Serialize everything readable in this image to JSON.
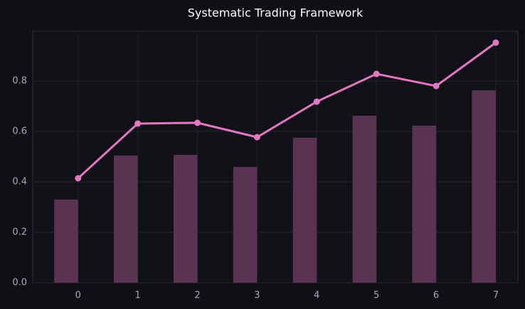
{
  "chart_data": {
    "type": "bar",
    "title": "Systematic Trading Framework",
    "x": [
      0,
      1,
      2,
      3,
      4,
      5,
      6,
      7
    ],
    "series": [
      {
        "type": "bar",
        "color": "#5a3352",
        "values": [
          0.33,
          0.504,
          0.507,
          0.459,
          0.575,
          0.662,
          0.623,
          0.763
        ]
      },
      {
        "type": "line",
        "color": "#e377c2",
        "values": [
          0.414,
          0.631,
          0.634,
          0.577,
          0.718,
          0.828,
          0.78,
          0.952
        ]
      }
    ],
    "xlim": [
      -0.76,
      7.37
    ],
    "ylim": [
      0,
      0.997
    ],
    "xticks": [
      0,
      1,
      2,
      3,
      4,
      5,
      6,
      7
    ],
    "yticks": [
      {
        "value": 0,
        "label": "0.0"
      },
      0.2,
      0.4,
      0.6,
      0.8
    ],
    "grid": true
  }
}
